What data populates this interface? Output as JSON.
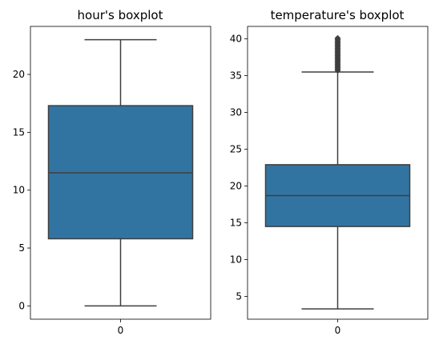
{
  "chart_data": [
    {
      "type": "box",
      "title": "hour's boxplot",
      "xlabel": "",
      "ylabel": "",
      "categories": [
        "0"
      ],
      "ylim": [
        -1.15,
        24.15
      ],
      "yticks": [
        0,
        5,
        10,
        15,
        20
      ],
      "ytick_labels": [
        "0",
        "5",
        "10",
        "15",
        "20"
      ],
      "box": {
        "whisker_low": 0,
        "q1": 5.8,
        "median": 11.5,
        "q3": 17.3,
        "whisker_high": 23
      },
      "outliers": [],
      "color": "#3274a1",
      "line_color": "#3f3f3f"
    },
    {
      "type": "box",
      "title": "temperature's boxplot",
      "xlabel": "",
      "ylabel": "",
      "categories": [
        "0"
      ],
      "ylim": [
        1.9,
        41.7
      ],
      "yticks": [
        5,
        10,
        15,
        20,
        25,
        30,
        35,
        40
      ],
      "ytick_labels": [
        "5",
        "10",
        "15",
        "20",
        "25",
        "30",
        "35",
        "40"
      ],
      "box": {
        "whisker_low": 3.3,
        "q1": 14.5,
        "median": 18.7,
        "q3": 22.9,
        "whisker_high": 35.5
      },
      "outliers": [
        35.7,
        35.9,
        36.1,
        36.3,
        36.5,
        36.7,
        36.9,
        37.1,
        37.3,
        37.5,
        37.7,
        37.9,
        38.1,
        38.3,
        38.5,
        38.7,
        38.9,
        39.1,
        39.3,
        39.5,
        39.7,
        39.9,
        40.1
      ],
      "color": "#3274a1",
      "line_color": "#3f3f3f"
    }
  ]
}
